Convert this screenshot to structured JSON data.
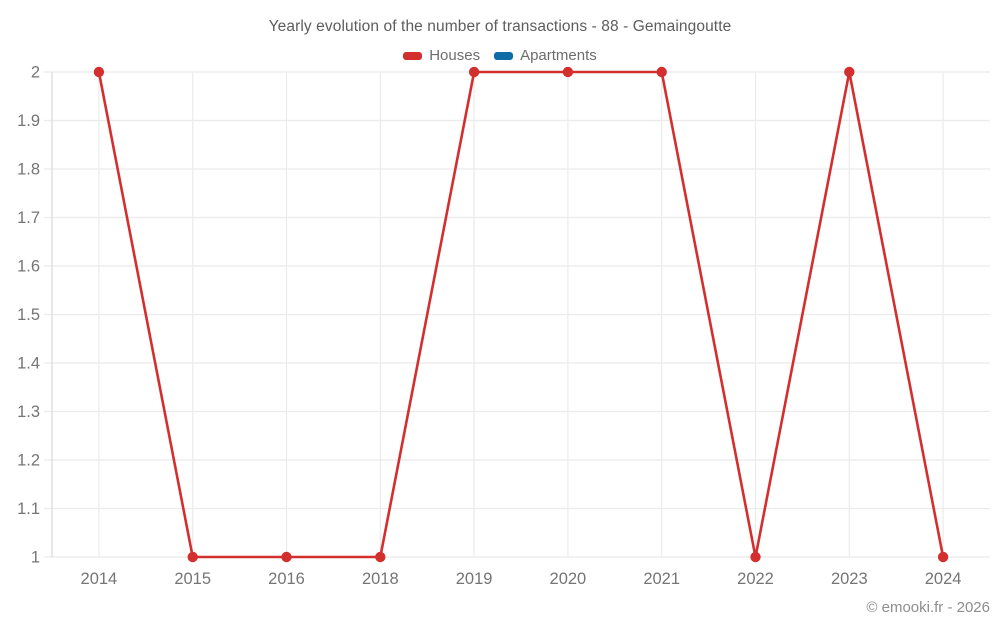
{
  "title": "Yearly evolution of the number of transactions - 88 - Gemaingoutte",
  "footer": "© emooki.fr - 2026",
  "legend": {
    "items": [
      {
        "label": "Houses",
        "color": "#d32f2f"
      },
      {
        "label": "Apartments",
        "color": "#0f6da6"
      }
    ]
  },
  "chart_data": {
    "type": "line",
    "title": "Yearly evolution of the number of transactions - 88 - Gemaingoutte",
    "categories": [
      "2014",
      "2015",
      "2016",
      "2018",
      "2019",
      "2020",
      "2021",
      "2022",
      "2023",
      "2024"
    ],
    "series": [
      {
        "name": "Houses",
        "color": "#d32f2f",
        "values": [
          2,
          1,
          1,
          1,
          2,
          2,
          2,
          1,
          2,
          1
        ]
      },
      {
        "name": "Apartments",
        "color": "#0f6da6",
        "values": []
      }
    ],
    "xlabel": "",
    "ylabel": "",
    "ylim": [
      1,
      2
    ],
    "ytick_labels": [
      "2",
      "1.9",
      "1.8",
      "1.7",
      "1.6",
      "1.5",
      "1.4",
      "1.3",
      "1.2",
      "1.1",
      "1"
    ],
    "ytick_values": [
      2,
      1.9,
      1.8,
      1.7,
      1.6,
      1.5,
      1.4,
      1.3,
      1.2,
      1.1,
      1
    ],
    "grid": true,
    "legend_position": "top"
  },
  "style": {
    "grid_color": "#ebebeb",
    "axis_color": "#d9d9d9",
    "tick_label_color": "#757575"
  }
}
